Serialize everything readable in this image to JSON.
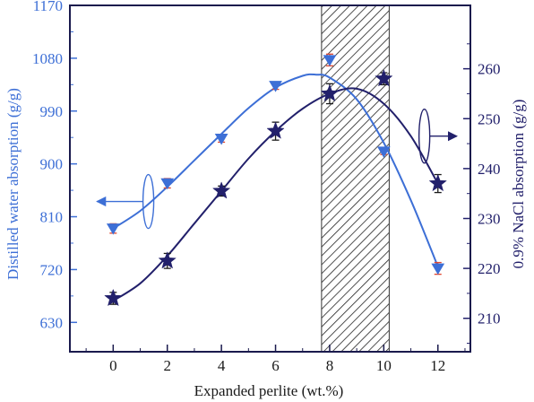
{
  "chart_data": {
    "type": "line",
    "xlabel": "Expanded perlite (wt.%)",
    "ylabel_left": "Distilled water absorption (g/g)",
    "ylabel_right": "0.9% NaCl absorption (g/g)",
    "x": [
      0,
      2,
      4,
      6,
      8,
      10,
      12
    ],
    "xlim": [
      -1.6,
      13.2
    ],
    "x_ticks": [
      "0",
      "2",
      "4",
      "6",
      "8",
      "10",
      "12"
    ],
    "ylim_left": [
      580,
      1170
    ],
    "y_ticks_left": [
      "630",
      "720",
      "810",
      "900",
      "990",
      "1080",
      "1170"
    ],
    "ylim_right": [
      203.3,
      272.7
    ],
    "y_ticks_right": [
      "210",
      "220",
      "230",
      "240",
      "250",
      "260"
    ],
    "shaded_region_x": [
      7.7,
      10.2
    ],
    "series": [
      {
        "axis": "left",
        "marker": "triangle-down",
        "color": "#3d6fd6",
        "values": [
          790,
          867,
          943,
          1033,
          1077,
          921,
          722
        ],
        "errors": [
          8,
          8,
          6,
          6,
          10,
          5,
          10
        ],
        "fit_curve": [
          [
            0,
            790
          ],
          [
            1,
            820
          ],
          [
            2,
            861
          ],
          [
            3,
            906
          ],
          [
            4,
            951
          ],
          [
            5,
            995
          ],
          [
            6,
            1030
          ],
          [
            7,
            1050
          ],
          [
            7.5,
            1052
          ],
          [
            8,
            1047
          ],
          [
            9,
            1010
          ],
          [
            10,
            936
          ],
          [
            11,
            838
          ],
          [
            12,
            725
          ]
        ]
      },
      {
        "axis": "right",
        "marker": "star",
        "color": "#22206b",
        "values": [
          214,
          221.5,
          235.5,
          247.5,
          255,
          258,
          237
        ],
        "errors": [
          1.2,
          1.5,
          1.0,
          1.8,
          2.0,
          1.2,
          1.8
        ],
        "fit_curve": [
          [
            0,
            213.5
          ],
          [
            1,
            217
          ],
          [
            2,
            222.5
          ],
          [
            3,
            229
          ],
          [
            4,
            235.5
          ],
          [
            5,
            242
          ],
          [
            6,
            247.5
          ],
          [
            7,
            252
          ],
          [
            8,
            255
          ],
          [
            9,
            256
          ],
          [
            10,
            253
          ],
          [
            11,
            246.5
          ],
          [
            12,
            237
          ]
        ]
      }
    ]
  }
}
